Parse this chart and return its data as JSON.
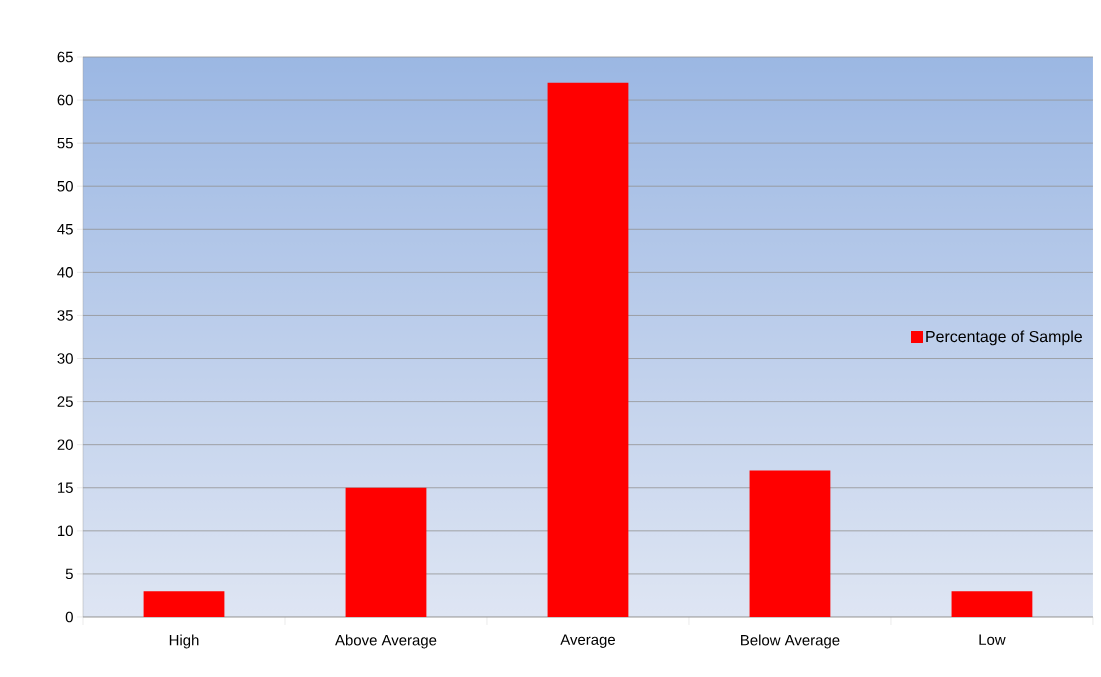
{
  "chart_data": {
    "type": "bar",
    "categories": [
      "High",
      "Above Average",
      "Average",
      "Below Average",
      "Low"
    ],
    "series": [
      {
        "name": "Percentage of Sample",
        "color": "#ff0000",
        "values": [
          3,
          15,
          62,
          17,
          3
        ]
      }
    ],
    "ylim": [
      0,
      65
    ],
    "yticks": [
      0,
      5,
      10,
      15,
      20,
      25,
      30,
      35,
      40,
      45,
      50,
      55,
      60,
      65
    ],
    "grid": "y",
    "legend": "right"
  }
}
